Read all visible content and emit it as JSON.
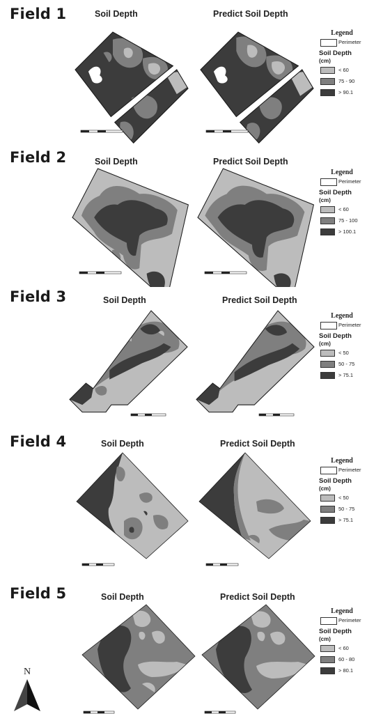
{
  "colors": {
    "low": "#bcbcbc",
    "mid": "#7f7f7f",
    "high": "#3c3c3c",
    "perimeter": "#1a1a1a"
  },
  "north_label": "N",
  "fields": [
    {
      "title": "Field 1",
      "map_left_title": "Soil Depth",
      "map_right_title": "Predict Soil Depth",
      "legend": {
        "title": "Legend",
        "perimeter": "Perimeter",
        "soil_depth": "Soil Depth",
        "unit": "(cm)",
        "classes": [
          "< 60",
          "75  - 90",
          "> 90.1"
        ]
      }
    },
    {
      "title": "Field 2",
      "map_left_title": "Soil Depth",
      "map_right_title": "Predict Soil Depth",
      "legend": {
        "title": "Legend",
        "perimeter": "Perimeter",
        "soil_depth": "Soil Depth",
        "unit": "(cm)",
        "classes": [
          "< 60",
          "75 - 100",
          "> 100.1"
        ]
      }
    },
    {
      "title": "Field 3",
      "map_left_title": "Soil Depth",
      "map_right_title": "Predict Soil Depth",
      "legend": {
        "title": "Legend",
        "perimeter": "Perimeter",
        "soil_depth": "Soil Depth",
        "unit": "(cm)",
        "classes": [
          "< 50",
          "50 - 75",
          "> 75.1"
        ]
      }
    },
    {
      "title": "Field 4",
      "map_left_title": "Soil Depth",
      "map_right_title": "Predict Soil Depth",
      "legend": {
        "title": "Legend",
        "perimeter": "Perimeter",
        "soil_depth": "Soil Depth",
        "unit": "(cm)",
        "classes": [
          "< 50",
          "50 - 75",
          "> 75.1"
        ]
      }
    },
    {
      "title": "Field 5",
      "map_left_title": "Soil Depth",
      "map_right_title": "Predict Soil Depth",
      "legend": {
        "title": "Legend",
        "perimeter": "Perimeter",
        "soil_depth": "Soil Depth",
        "unit": "(cm)",
        "classes": [
          "< 60",
          "60 - 80",
          "> 80.1"
        ]
      }
    }
  ]
}
